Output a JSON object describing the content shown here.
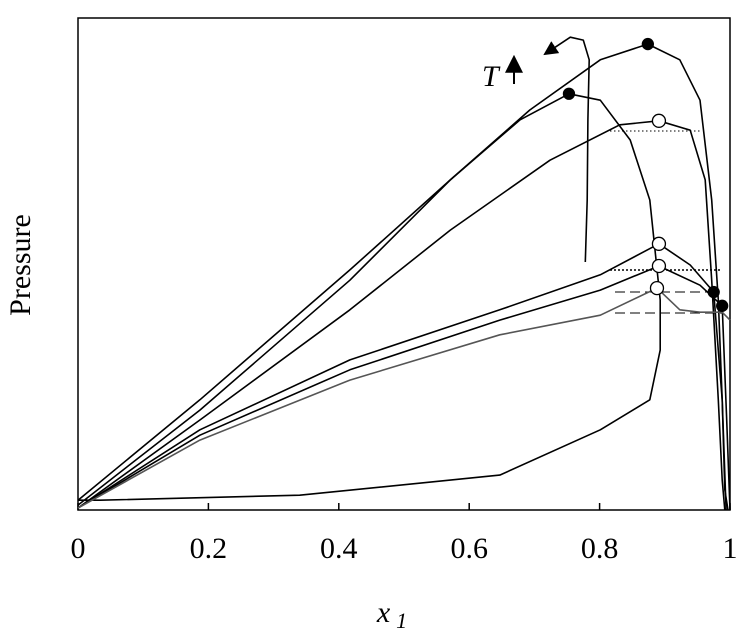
{
  "chart_data": {
    "type": "line",
    "xlabel": "x",
    "xlabel_sub": "1",
    "ylabel": "Pressure",
    "annotation": "T",
    "xlim": [
      0,
      1
    ],
    "ylim": [
      0,
      1
    ],
    "xticks": [
      0,
      0.2,
      0.4,
      0.6,
      0.8,
      1
    ],
    "series": [
      {
        "color": "#000",
        "x": [
          0,
          0.187,
          0.417,
          0.571,
          0.693,
          0.801,
          0.874,
          0.923,
          0.954,
          0.972,
          0.982,
          0.988,
          0.992,
          0.997
        ],
        "y": [
          0.02,
          0.224,
          0.488,
          0.671,
          0.813,
          0.915,
          0.947,
          0.915,
          0.833,
          0.63,
          0.427,
          0.224,
          0.041,
          0
        ]
      },
      {
        "color": "#000",
        "x": [
          0,
          0.187,
          0.417,
          0.571,
          0.678,
          0.753,
          0.801,
          0.847,
          0.877,
          0.893,
          0.893,
          0.877,
          0.801,
          0.647,
          0.34,
          0.034,
          0
        ],
        "y": [
          0.01,
          0.203,
          0.467,
          0.671,
          0.793,
          0.846,
          0.833,
          0.752,
          0.63,
          0.427,
          0.325,
          0.224,
          0.163,
          0.071,
          0.03,
          0.02,
          0.02
        ]
      },
      {
        "color": "#000",
        "x": [
          0,
          0.187,
          0.417,
          0.571,
          0.724,
          0.831,
          0.891,
          0.939,
          0.962,
          0.972,
          0.982,
          0.988,
          0.992
        ],
        "y": [
          0.004,
          0.183,
          0.407,
          0.569,
          0.711,
          0.783,
          0.791,
          0.772,
          0.671,
          0.467,
          0.224,
          0.061,
          0
        ]
      },
      {
        "color": "#000",
        "x": [
          0,
          0.187,
          0.417,
          0.647,
          0.801,
          0.891,
          0.939,
          0.975,
          0.988,
          0.994
        ],
        "y": [
          0.004,
          0.163,
          0.305,
          0.407,
          0.478,
          0.541,
          0.498,
          0.443,
          0.224,
          0
        ]
      },
      {
        "color": "#000",
        "x": [
          0,
          0.187,
          0.417,
          0.647,
          0.801,
          0.891,
          0.954,
          0.988,
          0.995,
          1
        ],
        "y": [
          0.004,
          0.152,
          0.285,
          0.386,
          0.447,
          0.496,
          0.457,
          0.415,
          0.183,
          0
        ]
      },
      {
        "color": "#555",
        "x": [
          0,
          0.187,
          0.417,
          0.647,
          0.801,
          0.888,
          0.923,
          0.954,
          0.988,
          1
        ],
        "y": [
          0.004,
          0.142,
          0.264,
          0.356,
          0.396,
          0.451,
          0.407,
          0.402,
          0.402,
          0.386
        ]
      },
      {
        "color": "#000",
        "arrow": true,
        "x": [
          0.778,
          0.781,
          0.782,
          0.784,
          0.775,
          0.755,
          0.721
        ],
        "y": [
          0.504,
          0.63,
          0.793,
          0.915,
          0.955,
          0.961,
          0.931
        ]
      }
    ],
    "points": [
      {
        "x": 0.874,
        "y": 0.947,
        "filled": true
      },
      {
        "x": 0.753,
        "y": 0.846,
        "filled": true
      },
      {
        "x": 0.891,
        "y": 0.791,
        "filled": false
      },
      {
        "x": 0.891,
        "y": 0.541,
        "filled": false
      },
      {
        "x": 0.891,
        "y": 0.496,
        "filled": false
      },
      {
        "x": 0.888,
        "y": 0.451,
        "filled": false
      },
      {
        "x": 0.975,
        "y": 0.443,
        "filled": true
      },
      {
        "x": 0.988,
        "y": 0.415,
        "filled": true
      }
    ]
  }
}
